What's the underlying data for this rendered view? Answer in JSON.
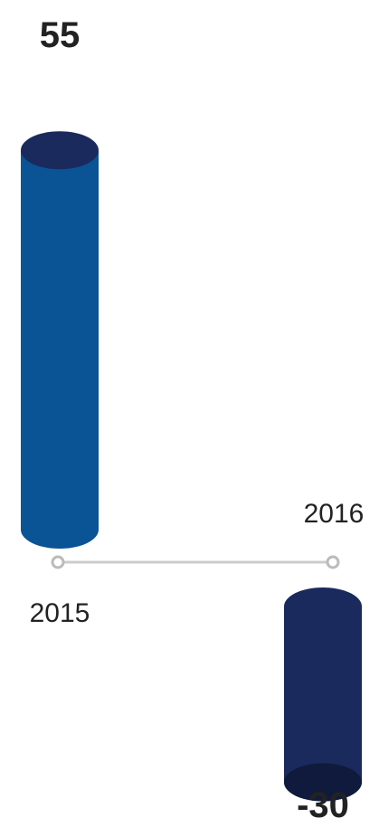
{
  "chart_data": {
    "type": "bar",
    "categories": [
      "2015",
      "2016"
    ],
    "values": [
      55,
      -30
    ],
    "value_labels": [
      "55",
      "-30"
    ],
    "style": "3d-cylinder",
    "grid": false,
    "legend": "none",
    "colors": {
      "positive_body": "#0a5394",
      "positive_top": "#1b2a5c",
      "negative_body": "#1b2a5c",
      "negative_cap": "#0f1a3d",
      "baseline": "#cccccc",
      "marker_stroke": "#bbbbbb",
      "text": "#222222"
    }
  }
}
